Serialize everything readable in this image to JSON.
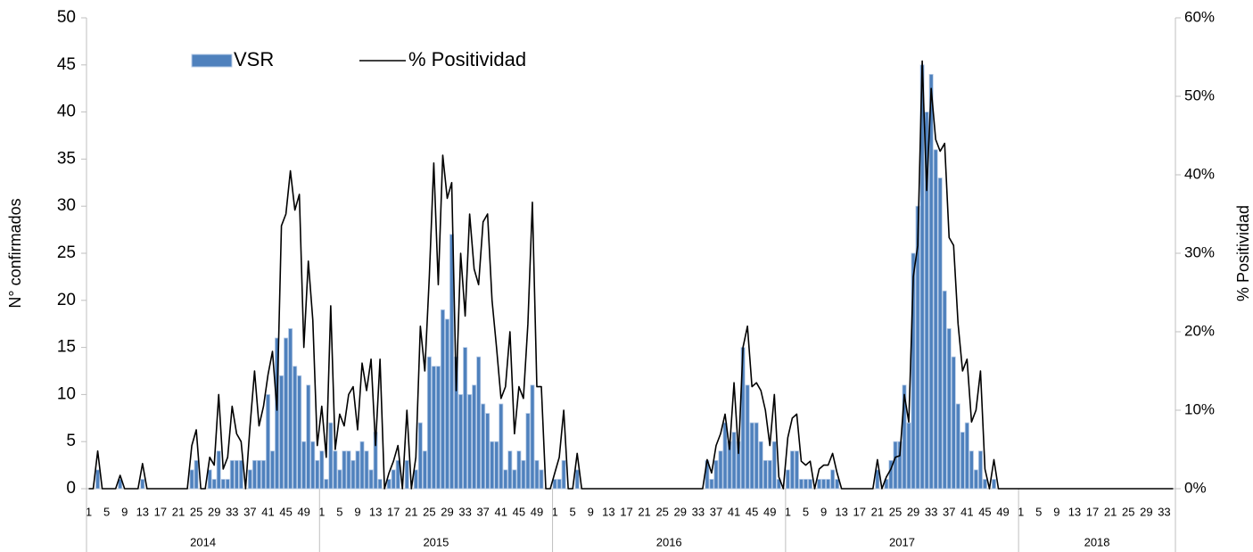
{
  "chart_data": {
    "type": "bar",
    "y_label": "N° confirmados",
    "y2_label": "% Positividad",
    "categories": [
      "1",
      null,
      null,
      null,
      "5",
      null,
      null,
      null,
      "9",
      null,
      null,
      null,
      "13",
      null,
      null,
      null,
      "17",
      null,
      null,
      null,
      "21",
      null,
      null,
      null,
      "25",
      null,
      null,
      null,
      "29",
      null,
      null,
      null,
      "33",
      null,
      null,
      null,
      "37",
      null,
      null,
      null,
      "41",
      null,
      null,
      null,
      "45",
      null,
      null,
      null,
      "49",
      null,
      null,
      null,
      "1",
      null,
      null,
      null,
      "5",
      null,
      null,
      null,
      "9",
      null,
      null,
      null,
      "13",
      null,
      null,
      null,
      "17",
      null,
      null,
      null,
      "21",
      null,
      null,
      null,
      "25",
      null,
      null,
      null,
      "29",
      null,
      null,
      null,
      "33",
      null,
      null,
      null,
      "37",
      null,
      null,
      null,
      "41",
      null,
      null,
      null,
      "45",
      null,
      null,
      null,
      "49",
      null,
      null,
      null,
      "1",
      null,
      null,
      null,
      "5",
      null,
      null,
      null,
      "9",
      null,
      null,
      null,
      "13",
      null,
      null,
      null,
      "17",
      null,
      null,
      null,
      "21",
      null,
      null,
      null,
      "25",
      null,
      null,
      null,
      "29",
      null,
      null,
      null,
      "33",
      null,
      null,
      null,
      "37",
      null,
      null,
      null,
      "41",
      null,
      null,
      null,
      "45",
      null,
      null,
      null,
      "49",
      null,
      null,
      null,
      "1",
      null,
      null,
      null,
      "5",
      null,
      null,
      null,
      "9",
      null,
      null,
      null,
      "13",
      null,
      null,
      null,
      "17",
      null,
      null,
      null,
      "21",
      null,
      null,
      null,
      "25",
      null,
      null,
      null,
      "29",
      null,
      null,
      null,
      "33",
      null,
      null,
      null,
      "37",
      null,
      null,
      null,
      "41",
      null,
      null,
      null,
      "45",
      null,
      null,
      null,
      "49",
      null,
      null,
      null,
      "1",
      null,
      null,
      null,
      "5",
      null,
      null,
      null,
      "9",
      null,
      null,
      null,
      "13",
      null,
      null,
      null,
      "17",
      null,
      null,
      null,
      "21",
      null,
      null,
      null,
      "25",
      null,
      null,
      null,
      "29",
      null,
      null,
      null,
      "33",
      null,
      null
    ],
    "groups": [
      "2014",
      "2015",
      "2016",
      "2017",
      "2018"
    ],
    "series": [
      {
        "name": "VSR",
        "type": "bar",
        "color": "#4f81bd",
        "values": [
          0,
          0,
          2,
          0,
          0,
          0,
          0,
          1,
          0,
          0,
          0,
          0,
          1,
          0,
          0,
          0,
          0,
          0,
          0,
          0,
          0,
          0,
          0,
          2,
          3,
          0,
          0,
          2,
          1,
          4,
          1,
          1,
          3,
          3,
          3,
          0,
          2,
          3,
          3,
          3,
          10,
          4,
          16,
          12,
          16,
          17,
          13,
          12,
          5,
          11,
          5,
          3,
          4,
          1,
          7,
          4,
          2,
          4,
          4,
          3,
          4,
          5,
          4,
          2,
          6,
          1,
          0,
          1,
          2,
          3,
          0,
          3,
          0,
          2,
          7,
          4,
          14,
          13,
          13,
          19,
          18,
          27,
          14,
          10,
          15,
          10,
          11,
          14,
          9,
          8,
          5,
          5,
          9,
          2,
          4,
          2,
          4,
          3,
          8,
          11,
          3,
          2,
          0,
          0,
          1,
          1,
          3,
          0,
          0,
          2,
          0,
          0,
          0,
          0,
          0,
          0,
          0,
          0,
          0,
          0,
          0,
          0,
          0,
          0,
          0,
          0,
          0,
          0,
          0,
          0,
          0,
          0,
          0,
          0,
          0,
          0,
          0,
          0,
          3,
          1,
          3,
          4,
          7,
          5,
          6,
          5,
          15,
          11,
          7,
          7,
          5,
          3,
          3,
          5,
          1,
          0,
          2,
          4,
          4,
          1,
          1,
          1,
          0,
          1,
          1,
          1,
          2,
          1,
          0,
          0,
          0,
          0,
          0,
          0,
          0,
          0,
          2,
          0,
          1,
          3,
          5,
          5,
          11,
          7,
          25,
          30,
          45,
          40,
          44,
          36,
          33,
          21,
          17,
          14,
          9,
          6,
          7,
          4,
          2,
          4,
          1,
          0,
          1,
          0,
          0,
          0,
          0,
          0,
          0,
          0,
          0,
          0,
          0,
          0,
          0,
          0,
          0,
          0,
          0,
          0,
          0,
          0,
          0,
          0,
          0,
          0,
          0,
          0,
          0,
          0,
          0,
          0,
          0,
          0,
          0,
          0,
          0,
          0,
          0,
          0,
          0,
          0,
          0
        ]
      },
      {
        "name": "% Positividad",
        "type": "line",
        "axis": "y2",
        "color": "#000000",
        "values": [
          0,
          0,
          4.8,
          0,
          0,
          0,
          0,
          1.7,
          0,
          0,
          0,
          0,
          3.2,
          0,
          0,
          0,
          0,
          0,
          0,
          0,
          0,
          0,
          0,
          5.5,
          7.5,
          0,
          0,
          4,
          3,
          12,
          2.5,
          4,
          10.5,
          7,
          6,
          0,
          8,
          15,
          8,
          10.5,
          14.5,
          17.5,
          10,
          33.5,
          35,
          40.5,
          35.5,
          37.5,
          18,
          29,
          21.5,
          5.5,
          10.5,
          4,
          23.3,
          5,
          9.5,
          8,
          12,
          13,
          7.5,
          16,
          12.5,
          16.5,
          5.5,
          16.5,
          0,
          2,
          3.5,
          5.5,
          0,
          10,
          0,
          4,
          20.7,
          15,
          27,
          41.5,
          26,
          42.5,
          37,
          39,
          12.5,
          30,
          22,
          35,
          28,
          26,
          34,
          35,
          24,
          18,
          11.5,
          13,
          20,
          7,
          13,
          11.5,
          21,
          36.5,
          13,
          13,
          0,
          0,
          2,
          4,
          10,
          0,
          0,
          4.5,
          0,
          0,
          0,
          0,
          0,
          0,
          0,
          0,
          0,
          0,
          0,
          0,
          0,
          0,
          0,
          0,
          0,
          0,
          0,
          0,
          0,
          0,
          0,
          0,
          0,
          0,
          0,
          0,
          3.7,
          2,
          5.5,
          7,
          9.5,
          5,
          13.5,
          4.5,
          18,
          20.7,
          13,
          13.5,
          12.5,
          10,
          5.5,
          12,
          1.5,
          0,
          6.5,
          9,
          9.5,
          3.5,
          3,
          3.5,
          0,
          2.5,
          3,
          3,
          4.5,
          2,
          0,
          0,
          0,
          0,
          0,
          0,
          0,
          0,
          3.7,
          0,
          1.5,
          2.5,
          4,
          4.2,
          12,
          8.5,
          27,
          31,
          54.5,
          38,
          51,
          44.5,
          43,
          44,
          32,
          31,
          21,
          15,
          16.5,
          8.5,
          10,
          15,
          2.5,
          0,
          3.7,
          0,
          0,
          0,
          0,
          0,
          0,
          0,
          0,
          0,
          0,
          0,
          0,
          0,
          0,
          0,
          0,
          0,
          0,
          0,
          0,
          0,
          0,
          0,
          0,
          0,
          0,
          0,
          0,
          0,
          0,
          0,
          0,
          0,
          0,
          0,
          0,
          0,
          0,
          0,
          0
        ]
      }
    ],
    "ylim": [
      0,
      50
    ],
    "yticks": [
      0,
      5,
      10,
      15,
      20,
      25,
      30,
      35,
      40,
      45,
      50
    ],
    "y2lim": [
      0,
      60
    ],
    "y2ticks": [
      {
        "value": 0,
        "label": "0%"
      },
      {
        "value": 10,
        "label": "10%"
      },
      {
        "value": 20,
        "label": "20%"
      },
      {
        "value": 30,
        "label": "30%"
      },
      {
        "value": 40,
        "label": "40%"
      },
      {
        "value": 50,
        "label": "50%"
      },
      {
        "value": 60,
        "label": "60%"
      }
    ],
    "grid": false,
    "legend": "top-left"
  }
}
